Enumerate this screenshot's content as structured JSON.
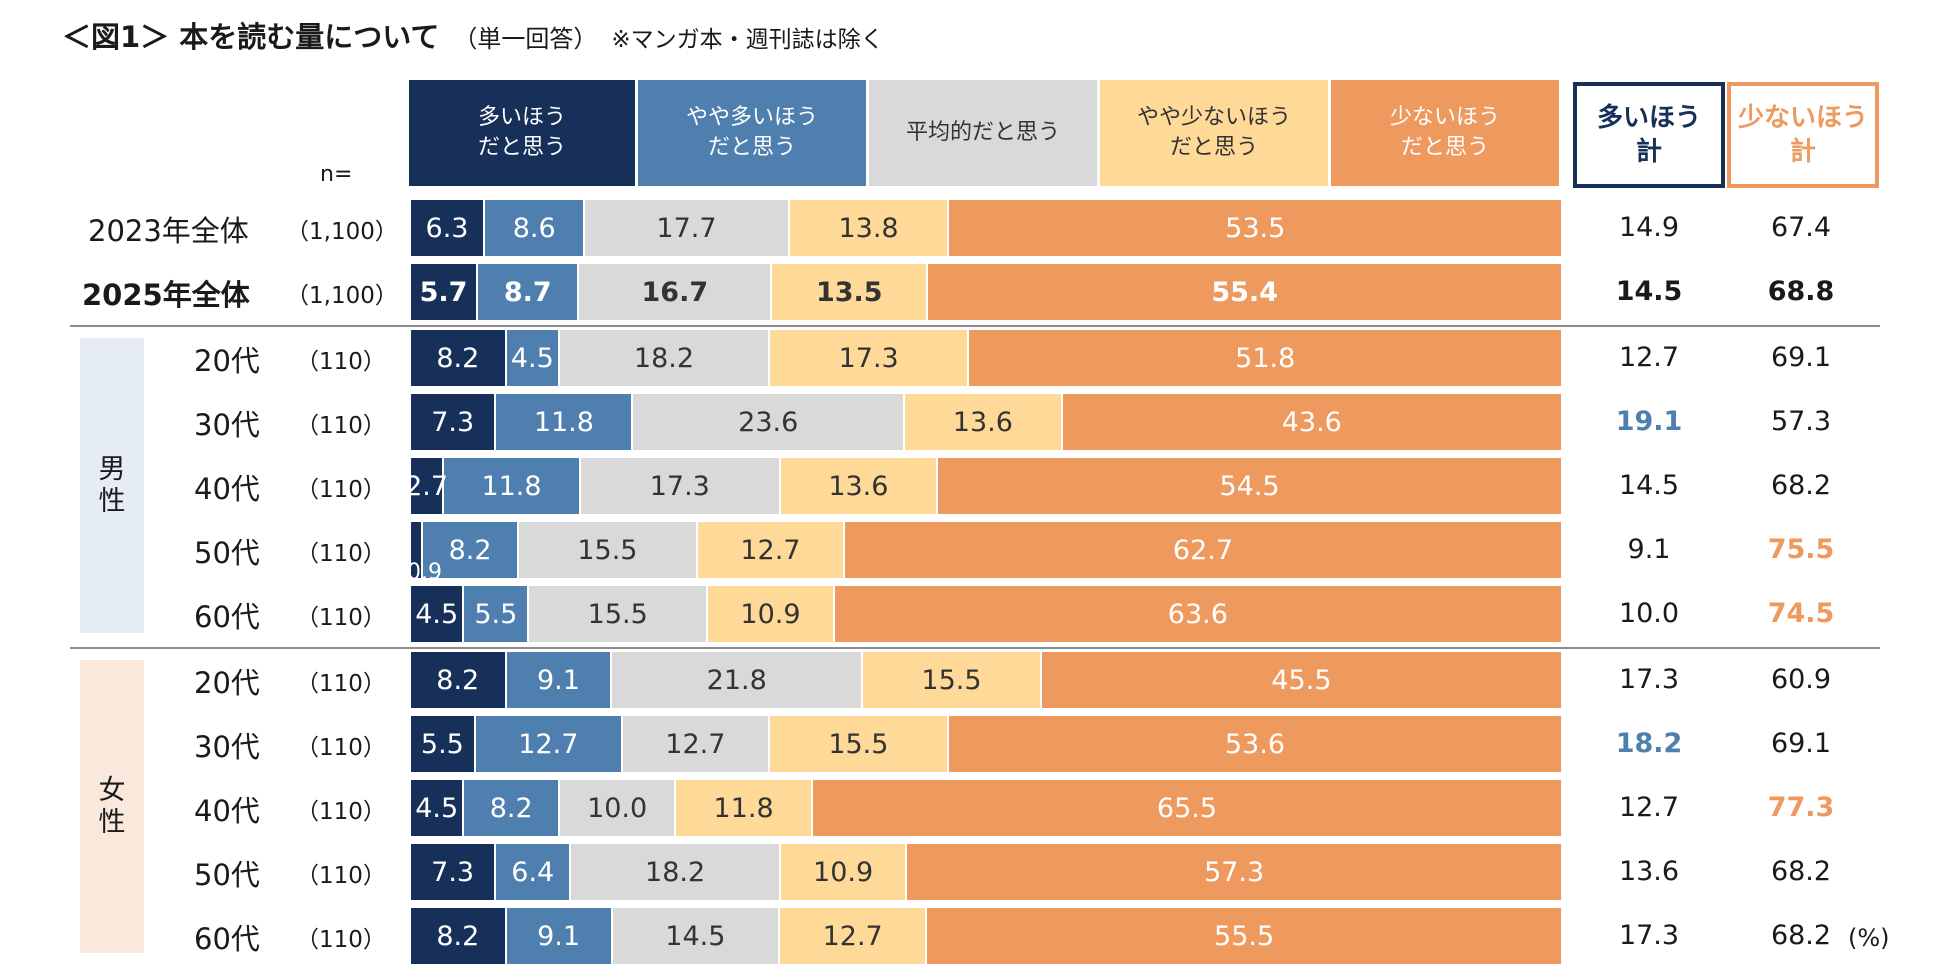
{
  "title": {
    "main": "＜図1＞ 本を読む量について",
    "sub1": "（単一回答）",
    "sub2": "※マンガ本・週刊誌は除く"
  },
  "colors": {
    "c1": "#17305A",
    "c2": "#4E7FAF",
    "c3": "#D9D9D9",
    "c4": "#FFD998",
    "c5": "#EE9A5F",
    "blueText": "#4E7FAF",
    "orangeText": "#EE9A5F",
    "maleBand": "#E6ECF5",
    "femaleBand": "#FBE8DC"
  },
  "n_label": "n=",
  "unit": "(%)",
  "legend": [
    "多いほう\nだと思う",
    "やや多いほう\nだと思う",
    "平均的だと思う",
    "やや少ないほう\nだと思う",
    "少ないほう\nだと思う"
  ],
  "totals_headers": [
    "多いほう\n計",
    "少ないほう\n計"
  ],
  "groups": [
    {
      "label": "男\n性"
    },
    {
      "label": "女\n性"
    }
  ],
  "chart_data": {
    "type": "bar",
    "orientation": "horizontal",
    "stacked": "100%",
    "unit": "%",
    "series_names": [
      "多いほうだと思う",
      "やや多いほうだと思う",
      "平均的だと思う",
      "やや少ないほうだと思う",
      "少ないほうだと思う"
    ],
    "rows": [
      {
        "label": "2023年全体",
        "n": "（1,100）",
        "values": [
          6.3,
          8.6,
          17.7,
          13.8,
          53.5
        ],
        "total_more": "14.9",
        "total_less": "67.4",
        "bold": false,
        "hl_more": false,
        "hl_less": false
      },
      {
        "label": "2025年全体",
        "n": "（1,100）",
        "values": [
          5.7,
          8.7,
          16.7,
          13.5,
          55.4
        ],
        "total_more": "14.5",
        "total_less": "68.8",
        "bold": true,
        "hl_more": false,
        "hl_less": false
      },
      {
        "label": "20代",
        "n": "（110）",
        "values": [
          8.2,
          4.5,
          18.2,
          17.3,
          51.8
        ],
        "total_more": "12.7",
        "total_less": "69.1",
        "bold": false,
        "hl_more": false,
        "hl_less": false
      },
      {
        "label": "30代",
        "n": "（110）",
        "values": [
          7.3,
          11.8,
          23.6,
          13.6,
          43.6
        ],
        "total_more": "19.1",
        "total_less": "57.3",
        "bold": false,
        "hl_more": true,
        "hl_less": false
      },
      {
        "label": "40代",
        "n": "（110）",
        "values": [
          2.7,
          11.8,
          17.3,
          13.6,
          54.5
        ],
        "total_more": "14.5",
        "total_less": "68.2",
        "bold": false,
        "hl_more": false,
        "hl_less": false
      },
      {
        "label": "50代",
        "n": "（110）",
        "values": [
          0.9,
          8.2,
          15.5,
          12.7,
          62.7
        ],
        "total_more": "9.1",
        "total_less": "75.5",
        "bold": false,
        "hl_more": false,
        "hl_less": true
      },
      {
        "label": "60代",
        "n": "（110）",
        "values": [
          4.5,
          5.5,
          15.5,
          10.9,
          63.6
        ],
        "total_more": "10.0",
        "total_less": "74.5",
        "bold": false,
        "hl_more": false,
        "hl_less": true
      },
      {
        "label": "20代",
        "n": "（110）",
        "values": [
          8.2,
          9.1,
          21.8,
          15.5,
          45.5
        ],
        "total_more": "17.3",
        "total_less": "60.9",
        "bold": false,
        "hl_more": false,
        "hl_less": false
      },
      {
        "label": "30代",
        "n": "（110）",
        "values": [
          5.5,
          12.7,
          12.7,
          15.5,
          53.6
        ],
        "total_more": "18.2",
        "total_less": "69.1",
        "bold": false,
        "hl_more": true,
        "hl_less": false
      },
      {
        "label": "40代",
        "n": "（110）",
        "values": [
          4.5,
          8.2,
          10.0,
          11.8,
          65.5
        ],
        "total_more": "12.7",
        "total_less": "77.3",
        "bold": false,
        "hl_more": false,
        "hl_less": true
      },
      {
        "label": "50代",
        "n": "（110）",
        "values": [
          7.3,
          6.4,
          18.2,
          10.9,
          57.3
        ],
        "total_more": "13.6",
        "total_less": "68.2",
        "bold": false,
        "hl_more": false,
        "hl_less": false
      },
      {
        "label": "60代",
        "n": "（110）",
        "values": [
          8.2,
          9.1,
          14.5,
          12.7,
          55.5
        ],
        "total_more": "17.3",
        "total_less": "68.2",
        "bold": false,
        "hl_more": false,
        "hl_less": false
      }
    ]
  }
}
